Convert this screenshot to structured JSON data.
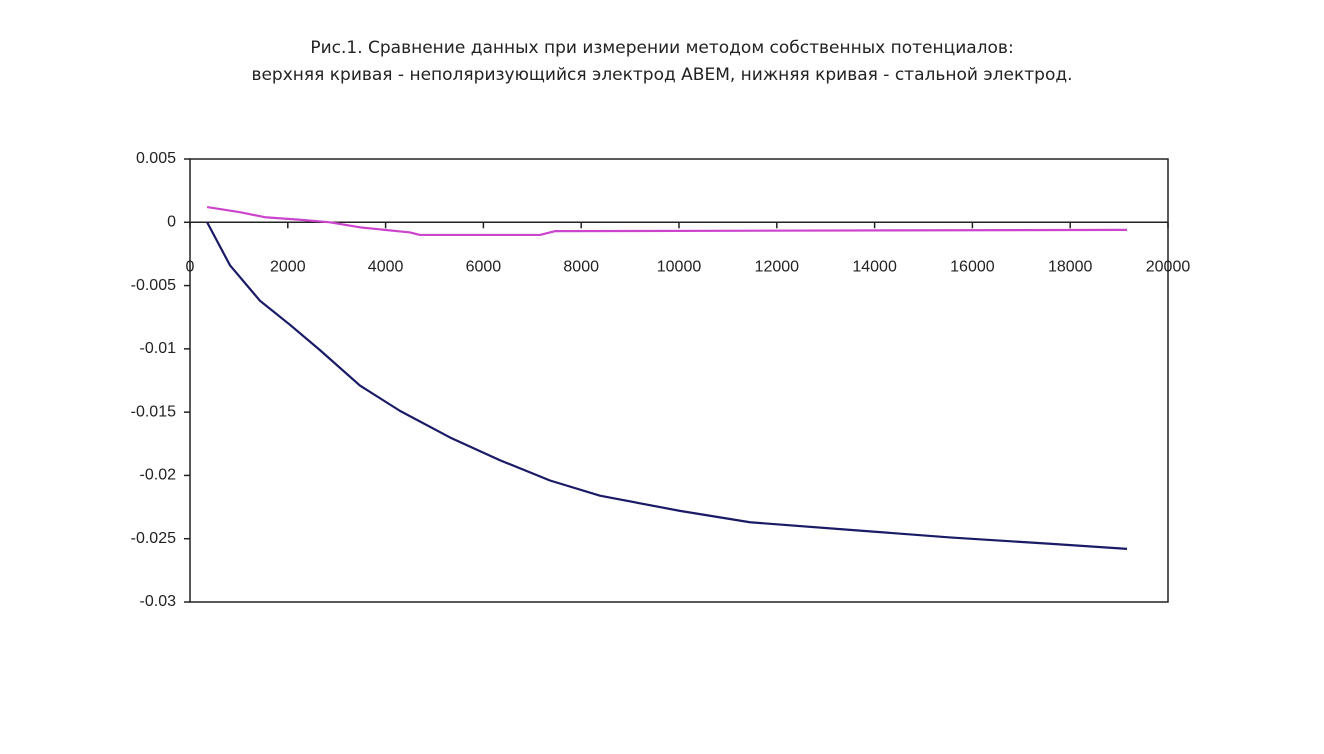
{
  "chart_data": {
    "type": "line",
    "title": "Рис.1. Сравнение данных при измерении методом собственных потенциалов:",
    "subtitle": "верхняя кривая  - неполяризующийся электрод ABEM, нижняя кривая - стальной электрод.",
    "xlim": [
      0,
      20000
    ],
    "xticks": [
      0,
      2000,
      4000,
      6000,
      8000,
      10000,
      12000,
      14000,
      16000,
      18000,
      20000
    ],
    "ylim": [
      -0.03,
      0.005
    ],
    "yticks": [
      0.005,
      0,
      -0.005,
      -0.01,
      -0.015,
      -0.02,
      -0.025,
      -0.03
    ],
    "grid": false,
    "series": [
      {
        "color": "#cc44cc",
        "x": [
          350,
          1022,
          1534,
          2249,
          2863,
          3476,
          4499,
          4703,
          7157,
          7464,
          19162
        ],
        "values": [
          0.0012,
          0.0008,
          0.0004,
          0.0002,
          0,
          -0.0004,
          -0.0008,
          -0.001,
          -0.001,
          -0.0007,
          -0.0006
        ]
      },
      {
        "color": "#1a1a66",
        "x": [
          350,
          818,
          1431,
          2045,
          2658,
          3476,
          4294,
          5317,
          6339,
          7362,
          8384,
          10020,
          11452,
          13497,
          15542,
          17587,
          19162
        ],
        "values": [
          0,
          -0.0034,
          -0.0062,
          -0.0081,
          -0.0101,
          -0.0129,
          -0.0149,
          -0.017,
          -0.0188,
          -0.0204,
          -0.0216,
          -0.0228,
          -0.0237,
          -0.0243,
          -0.0249,
          -0.0254,
          -0.0258
        ]
      }
    ]
  }
}
